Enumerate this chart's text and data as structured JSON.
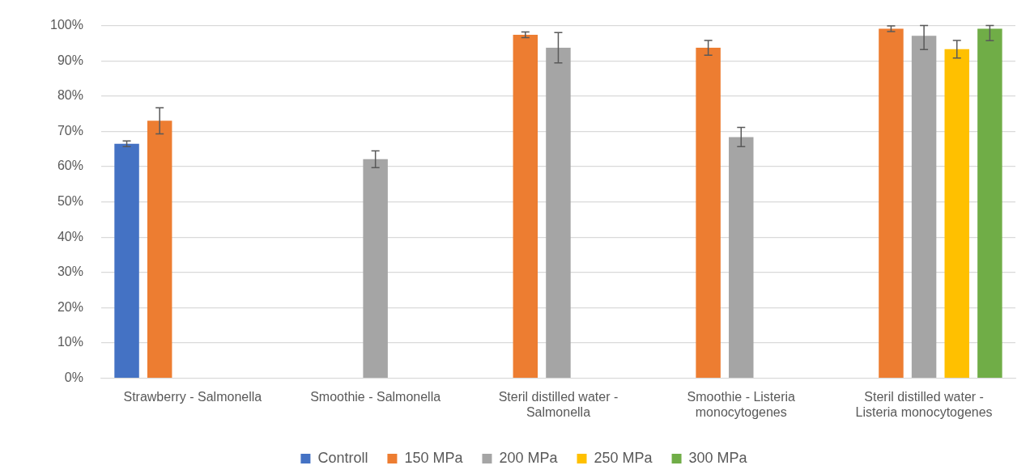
{
  "chart_data": {
    "type": "bar",
    "categories": [
      "Strawberry - Salmonella",
      "Smoothie - Salmonella",
      "Steril distilled water - Salmonella",
      "Smoothie - Listeria monocytogenes",
      "Steril distilled water - Listeria monocytogenes"
    ],
    "series": [
      {
        "name": "Controll",
        "color": "#4472c4",
        "values": [
          66.5,
          null,
          null,
          null,
          null
        ],
        "errors": [
          0.8,
          null,
          null,
          null,
          null
        ]
      },
      {
        "name": "150 MPa",
        "color": "#ed7d31",
        "values": [
          73,
          null,
          97.4,
          93.7,
          99.1
        ],
        "errors": [
          3.7,
          null,
          0.8,
          2.1,
          0.8
        ]
      },
      {
        "name": "200 MPa",
        "color": "#a5a5a5",
        "values": [
          null,
          62.1,
          93.7,
          68.4,
          97.1
        ],
        "errors": [
          null,
          2.4,
          4.3,
          2.7,
          [
            93.2,
            100
          ]
        ]
      },
      {
        "name": "250 MPa",
        "color": "#ffc000",
        "values": [
          null,
          null,
          null,
          null,
          93.3
        ],
        "errors": [
          null,
          null,
          null,
          null,
          2.5
        ]
      },
      {
        "name": "300 MPa",
        "color": "#70ad47",
        "values": [
          null,
          null,
          null,
          null,
          99.1
        ],
        "errors": [
          null,
          null,
          null,
          null,
          [
            95.7,
            100
          ]
        ]
      }
    ],
    "ylim": [
      0,
      100
    ],
    "yticks": [
      {
        "value": 0,
        "label": "0%"
      },
      {
        "value": 10,
        "label": "10%"
      },
      {
        "value": 20,
        "label": "20%"
      },
      {
        "value": 30,
        "label": "30%"
      },
      {
        "value": 40,
        "label": "40%"
      },
      {
        "value": 50,
        "label": "50%"
      },
      {
        "value": 60,
        "label": "60%"
      },
      {
        "value": 70,
        "label": "70%"
      },
      {
        "value": 80,
        "label": "80%"
      },
      {
        "value": 90,
        "label": "90%"
      },
      {
        "value": 100,
        "label": "100%"
      }
    ],
    "grid": "y",
    "legend": "bottom"
  }
}
